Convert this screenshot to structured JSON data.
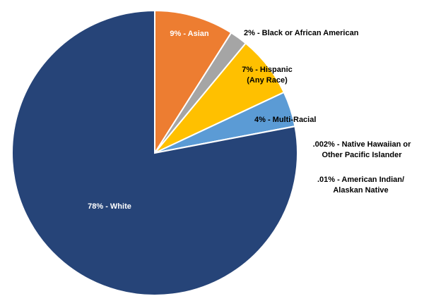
{
  "chart_data": {
    "type": "pie",
    "categories": [
      "9% - Asian",
      "2% - Black or African American",
      "7% - Hispanic (Any Race)",
      "4% - Multi-Racial",
      ".002% - Native Hawaiian or Other Pacific Islander",
      ".01% - American Indian/ Alaskan Native",
      "78% - White"
    ],
    "values": [
      9,
      2,
      7,
      4,
      0.002,
      0.01,
      78
    ],
    "colors": [
      "#ed7d31",
      "#a5a5a5",
      "#ffc000",
      "#5b9bd5",
      "#4a6fa8",
      "#4a6fa8",
      "#264478"
    ]
  }
}
